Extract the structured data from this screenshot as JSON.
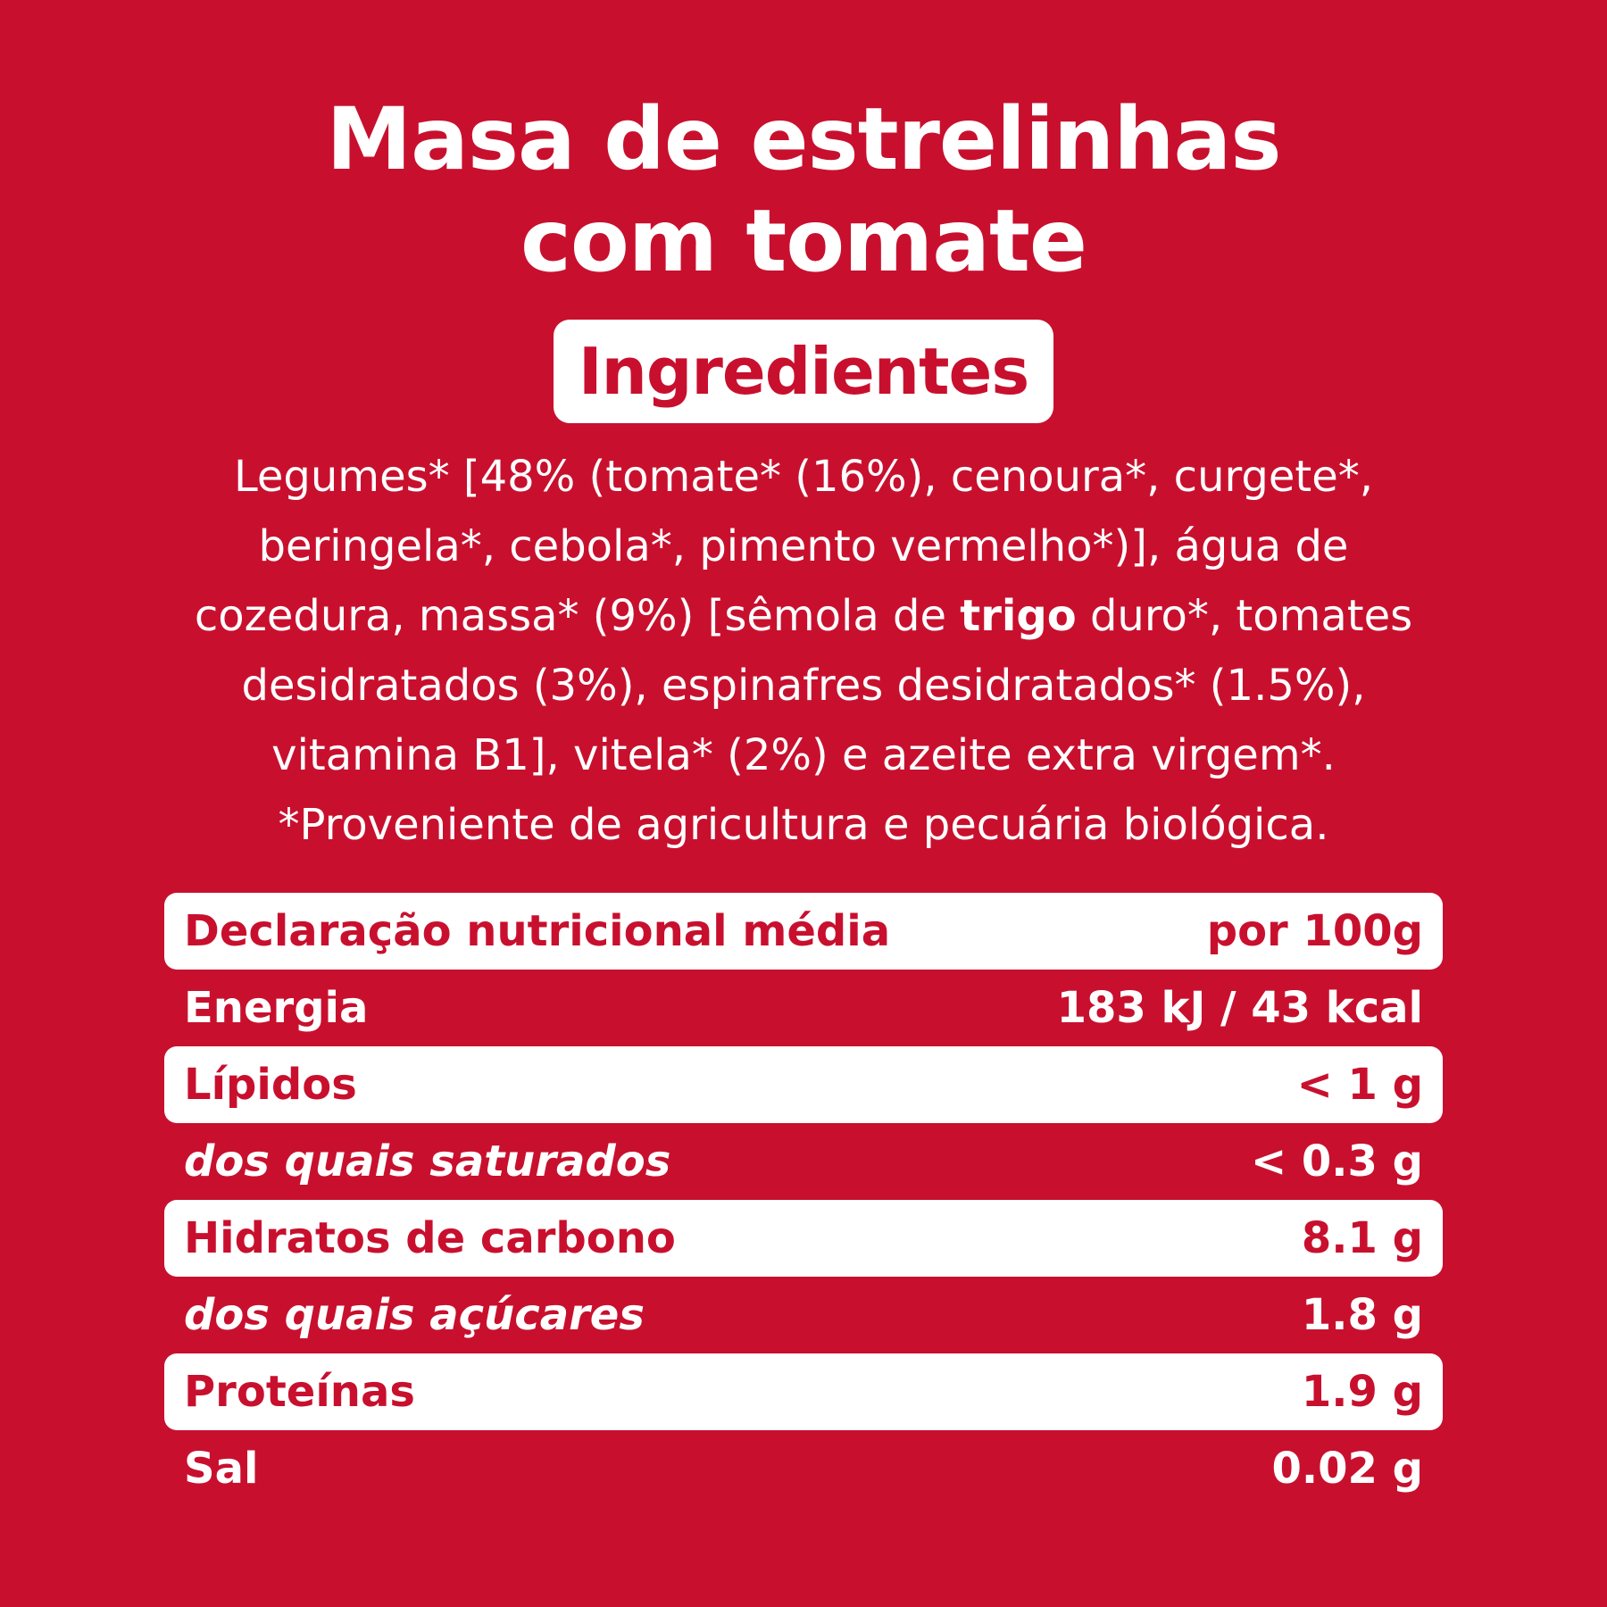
{
  "title": {
    "line1": "Masa de estrelinhas",
    "line2": "com tomate"
  },
  "ingredients_heading": "Ingredientes",
  "ingredients": {
    "line1": "Legumes* [48% (tomate* (16%), cenoura*, curgete*,",
    "line2": "beringela*, cebola*, pimento vermelho*)], água de",
    "line3_before": "cozedura, massa* (9%) [sêmola de ",
    "line3_bold": "trigo",
    "line3_after": " duro*, tomates",
    "line4": "desidratados (3%), espinafres desidratados* (1.5%),",
    "line5": "vitamina B1], vitela* (2%) e azeite extra virgem*.",
    "line6": "*Proveniente de agricultura e pecuária biológica."
  },
  "nutrition": {
    "header_label": "Declaração nutricional média",
    "header_value": "por 100g",
    "rows": [
      {
        "label": "Energia",
        "value": "183 kJ / 43 kcal"
      },
      {
        "label": "Lípidos",
        "value": "< 1 g"
      },
      {
        "label": "dos quais saturados",
        "value": "< 0.3 g"
      },
      {
        "label": "Hidratos de carbono",
        "value": "8.1 g"
      },
      {
        "label": "dos quais açúcares",
        "value": "1.8 g"
      },
      {
        "label": "Proteínas",
        "value": "1.9 g"
      },
      {
        "label": "Sal",
        "value": "0.02 g"
      }
    ]
  },
  "colors": {
    "background": "#c8102e",
    "highlight": "#ffffff",
    "text": "#ffffff"
  }
}
